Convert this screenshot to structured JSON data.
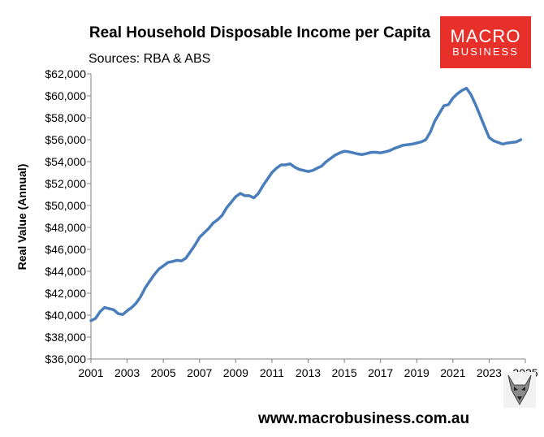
{
  "header": {
    "title": "Real Household Disposable Income per Capita",
    "subtitle": "Sources: RBA & ABS"
  },
  "logo": {
    "line1": "MACRO",
    "line2": "BUSINESS",
    "color": "#e8302a"
  },
  "footer": {
    "url": "www.macrobusiness.com.au",
    "icon": "wolf-mascot-icon"
  },
  "chart_data": {
    "type": "line",
    "title": "Real Household Disposable Income per Capita",
    "subtitle": "Sources: RBA & ABS",
    "xlabel": "",
    "ylabel": "Real Value (Annual)",
    "xlim": [
      2001,
      2025
    ],
    "ylim": [
      36000,
      62000
    ],
    "x_ticks": [
      2001,
      2003,
      2005,
      2007,
      2009,
      2011,
      2013,
      2015,
      2017,
      2019,
      2021,
      2023,
      2025
    ],
    "y_ticks": [
      "$36,000",
      "$38,000",
      "$40,000",
      "$42,000",
      "$44,000",
      "$46,000",
      "$48,000",
      "$50,000",
      "$52,000",
      "$54,000",
      "$56,000",
      "$58,000",
      "$60,000",
      "$62,000"
    ],
    "grid": false,
    "line_color": "#4a7ebb",
    "series": [
      {
        "x": [
          2001.0,
          2001.25,
          2001.5,
          2001.75,
          2002.0,
          2002.25,
          2002.5,
          2002.75,
          2003.0,
          2003.25,
          2003.5,
          2003.75,
          2004.0,
          2004.25,
          2004.5,
          2004.75,
          2005.0,
          2005.25,
          2005.5,
          2005.75,
          2006.0,
          2006.25,
          2006.5,
          2006.75,
          2007.0,
          2007.25,
          2007.5,
          2007.75,
          2008.0,
          2008.25,
          2008.5,
          2008.75,
          2009.0,
          2009.25,
          2009.5,
          2009.75,
          2010.0,
          2010.25,
          2010.5,
          2010.75,
          2011.0,
          2011.25,
          2011.5,
          2011.75,
          2012.0,
          2012.25,
          2012.5,
          2012.75,
          2013.0,
          2013.25,
          2013.5,
          2013.75,
          2014.0,
          2014.25,
          2014.5,
          2014.75,
          2015.0,
          2015.25,
          2015.5,
          2015.75,
          2016.0,
          2016.25,
          2016.5,
          2016.75,
          2017.0,
          2017.25,
          2017.5,
          2017.75,
          2018.0,
          2018.25,
          2018.5,
          2018.75,
          2019.0,
          2019.25,
          2019.5,
          2019.75,
          2020.0,
          2020.25,
          2020.5,
          2020.75,
          2021.0,
          2021.25,
          2021.5,
          2021.75,
          2022.0,
          2022.25,
          2022.5,
          2022.75,
          2023.0,
          2023.25,
          2023.5,
          2023.75,
          2024.0,
          2024.25,
          2024.5,
          2024.75
        ],
        "values": [
          39500,
          39700,
          40300,
          40700,
          40600,
          40500,
          40150,
          40050,
          40400,
          40700,
          41100,
          41700,
          42500,
          43100,
          43700,
          44200,
          44500,
          44800,
          44900,
          45000,
          44950,
          45200,
          45800,
          46400,
          47100,
          47500,
          47900,
          48400,
          48700,
          49100,
          49800,
          50300,
          50800,
          51100,
          50900,
          50900,
          50700,
          51100,
          51800,
          52400,
          53000,
          53400,
          53700,
          53700,
          53800,
          53500,
          53300,
          53200,
          53100,
          53200,
          53400,
          53600,
          54000,
          54300,
          54600,
          54800,
          54950,
          54900,
          54800,
          54700,
          54650,
          54750,
          54850,
          54850,
          54800,
          54900,
          55000,
          55200,
          55350,
          55500,
          55550,
          55600,
          55700,
          55800,
          56000,
          56700,
          57700,
          58400,
          59100,
          59200,
          59800,
          60200,
          60500,
          60700,
          60100,
          59200,
          58200,
          57200,
          56200,
          55900,
          55750,
          55600,
          55700,
          55750,
          55800,
          56000
        ]
      }
    ]
  }
}
